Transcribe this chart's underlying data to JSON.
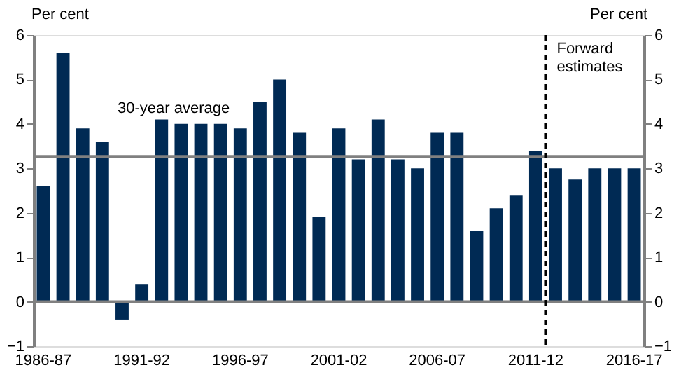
{
  "chart_data": {
    "type": "bar",
    "categories": [
      "1986-87",
      null,
      null,
      null,
      null,
      "1991-92",
      null,
      null,
      null,
      null,
      "1996-97",
      null,
      null,
      null,
      null,
      "2001-02",
      null,
      null,
      null,
      null,
      "2006-07",
      null,
      null,
      null,
      null,
      "2011-12",
      null,
      null,
      null,
      null,
      "2016-17"
    ],
    "values": [
      2.6,
      5.6,
      3.9,
      3.6,
      -0.4,
      0.4,
      4.1,
      4.0,
      4.0,
      4.0,
      3.9,
      4.5,
      5.0,
      3.8,
      1.9,
      3.9,
      3.2,
      4.1,
      3.2,
      3.0,
      3.8,
      3.8,
      1.6,
      2.1,
      2.4,
      3.4,
      3.0,
      2.75,
      3.0,
      3.0,
      3.0
    ],
    "color": "#002a54",
    "ylabel": "Per cent",
    "y2label": "Per cent",
    "ylim": [
      -1,
      6
    ],
    "yticks": [
      -1,
      0,
      1,
      2,
      3,
      4,
      5,
      6
    ],
    "y2lim": [
      -1,
      6
    ],
    "y2ticks": [
      -1,
      0,
      1,
      2,
      3,
      4,
      5,
      6
    ],
    "ref_lines": [
      {
        "axis": "y",
        "value": 3.27,
        "label": "30-year average",
        "color": "#808080",
        "line_style": "solid"
      },
      {
        "axis": "x",
        "value": "2011-12",
        "label": "Forward estimates",
        "color": "#000000",
        "line_style": "dashed"
      }
    ],
    "grid": false
  }
}
